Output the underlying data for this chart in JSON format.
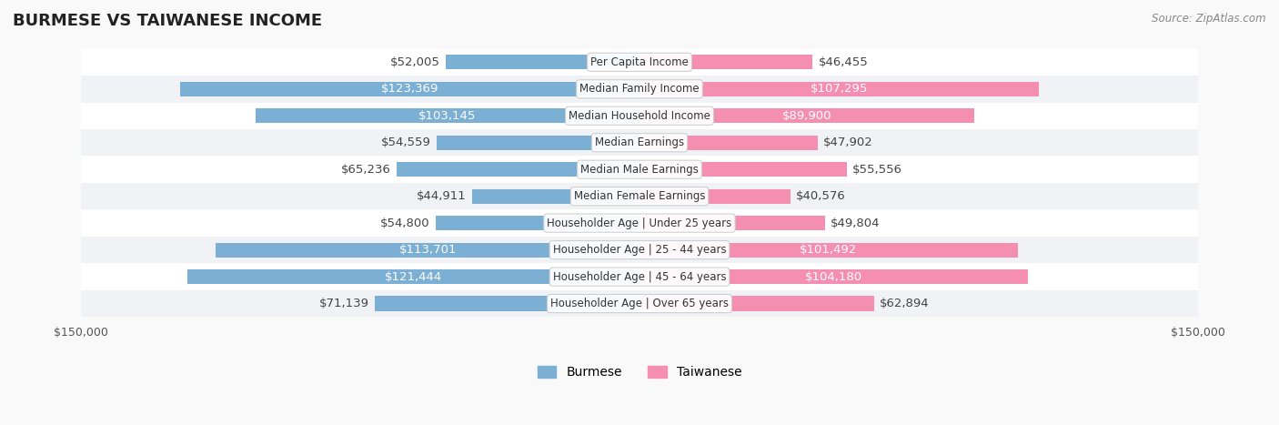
{
  "title": "BURMESE VS TAIWANESE INCOME",
  "source": "Source: ZipAtlas.com",
  "max_val": 150000,
  "categories": [
    "Per Capita Income",
    "Median Family Income",
    "Median Household Income",
    "Median Earnings",
    "Median Male Earnings",
    "Median Female Earnings",
    "Householder Age | Under 25 years",
    "Householder Age | 25 - 44 years",
    "Householder Age | 45 - 64 years",
    "Householder Age | Over 65 years"
  ],
  "burmese": [
    52005,
    123369,
    103145,
    54559,
    65236,
    44911,
    54800,
    113701,
    121444,
    71139
  ],
  "taiwanese": [
    46455,
    107295,
    89900,
    47902,
    55556,
    40576,
    49804,
    101492,
    104180,
    62894
  ],
  "burmese_color": "#7bafd4",
  "taiwanese_color": "#f48fb1",
  "burmese_label_color_threshold": 80000,
  "taiwanese_label_color_threshold": 80000,
  "bg_color": "#f5f5f5",
  "row_bg_light": "#fafafa",
  "row_bg_alt": "#f0f0f0",
  "bar_height": 0.55,
  "label_fontsize": 9.5,
  "title_fontsize": 13,
  "legend_fontsize": 10
}
